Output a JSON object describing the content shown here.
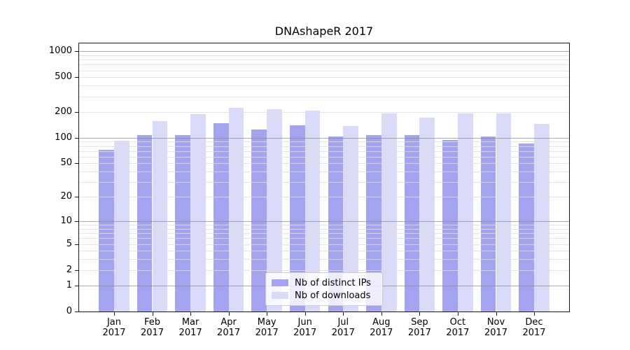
{
  "chart_data": {
    "type": "bar",
    "title": "DNAshapeR 2017",
    "x_labels": [
      [
        "Jan",
        "2017"
      ],
      [
        "Feb",
        "2017"
      ],
      [
        "Mar",
        "2017"
      ],
      [
        "Apr",
        "2017"
      ],
      [
        "May",
        "2017"
      ],
      [
        "Jun",
        "2017"
      ],
      [
        "Jul",
        "2017"
      ],
      [
        "Aug",
        "2017"
      ],
      [
        "Sep",
        "2017"
      ],
      [
        "Oct",
        "2017"
      ],
      [
        "Nov",
        "2017"
      ],
      [
        "Dec",
        "2017"
      ]
    ],
    "series": [
      {
        "name": "Nb of distinct IPs",
        "color": "#a3a3f0",
        "values": [
          72,
          108,
          108,
          147,
          124,
          140,
          104,
          108,
          108,
          94,
          104,
          85
        ]
      },
      {
        "name": "Nb of downloads",
        "color": "#d9daf8",
        "values": [
          92,
          156,
          187,
          221,
          214,
          206,
          136,
          192,
          172,
          192,
          190,
          144
        ]
      }
    ],
    "y_ticks": [
      0,
      1,
      2,
      5,
      10,
      20,
      50,
      100,
      200,
      500,
      1000
    ],
    "y_scale": "log1p",
    "ylim": [
      0,
      1231
    ],
    "grid": {
      "major_at": [
        1,
        10,
        100,
        1000
      ],
      "minor_at": [
        2,
        3,
        4,
        5,
        6,
        7,
        8,
        9,
        20,
        30,
        40,
        50,
        60,
        70,
        80,
        90,
        200,
        300,
        400,
        500,
        600,
        700,
        800,
        900
      ]
    },
    "legend": {
      "position": "lower center"
    },
    "colors": {
      "spine": "#1a1a1a",
      "major_grid": "#878787",
      "minor_grid": "#dfdfdf",
      "text": "#000000"
    }
  }
}
